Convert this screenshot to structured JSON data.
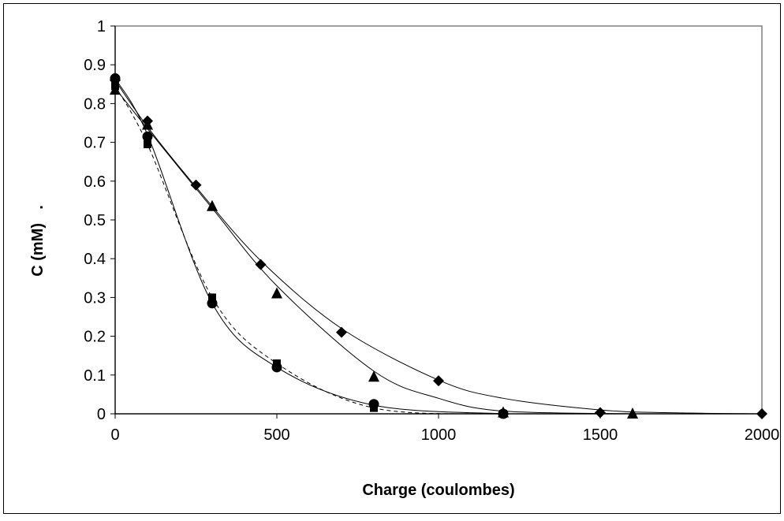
{
  "chart_data": {
    "type": "scatter",
    "title": "",
    "xlabel": "Charge (coulombes)",
    "ylabel": "C (mM)",
    "ylabel_trailing_mark": ".",
    "xlim": [
      0,
      2000
    ],
    "ylim": [
      0,
      1
    ],
    "xticks": [
      0,
      500,
      1000,
      1500,
      2000
    ],
    "xtick_labels": [
      "0",
      "500",
      "1000",
      "1500",
      "2000"
    ],
    "yticks": [
      0,
      0.1,
      0.2,
      0.3,
      0.4,
      0.5,
      0.6,
      0.7,
      0.8,
      0.9,
      1
    ],
    "ytick_labels": [
      "0",
      "0.1",
      "0.2",
      "0.3",
      "0.4",
      "0.5",
      "0.6",
      "0.7",
      "0.8",
      "0.9",
      "1"
    ],
    "grid": false,
    "legend": "none",
    "series": [
      {
        "marker": "diamond",
        "line": "solid",
        "x": [
          0,
          100,
          250,
          450,
          700,
          1000,
          1500,
          2000
        ],
        "values": [
          0.86,
          0.755,
          0.59,
          0.385,
          0.21,
          0.085,
          0.003,
          0.0
        ],
        "fit_x": [
          0,
          100,
          250,
          450,
          700,
          1000,
          1200,
          1500,
          1700,
          2000
        ],
        "fit_values": [
          0.86,
          0.74,
          0.585,
          0.395,
          0.22,
          0.087,
          0.04,
          0.01,
          0.003,
          0.0
        ]
      },
      {
        "marker": "triangle",
        "line": "solid",
        "x": [
          0,
          100,
          300,
          500,
          800,
          1200,
          1600
        ],
        "values": [
          0.835,
          0.745,
          0.535,
          0.31,
          0.095,
          0.003,
          0.0
        ],
        "fit_x": [
          0,
          100,
          300,
          500,
          800,
          1000,
          1200,
          1600
        ],
        "fit_values": [
          0.84,
          0.735,
          0.53,
          0.33,
          0.11,
          0.04,
          0.007,
          0.0
        ]
      },
      {
        "marker": "square",
        "line": "dashed",
        "x": [
          0,
          100,
          300,
          500,
          800,
          1200
        ],
        "values": [
          0.845,
          0.695,
          0.3,
          0.13,
          0.015,
          0.0
        ],
        "fit_x": [
          0,
          100,
          300,
          500,
          800,
          1200
        ],
        "fit_values": [
          0.845,
          0.695,
          0.3,
          0.13,
          0.015,
          0.0
        ]
      },
      {
        "marker": "circle",
        "line": "solid",
        "x": [
          0,
          100,
          300,
          500,
          800,
          1200
        ],
        "values": [
          0.865,
          0.715,
          0.285,
          0.12,
          0.025,
          0.0
        ],
        "fit_x": [
          0,
          100,
          300,
          500,
          800,
          1200
        ],
        "fit_values": [
          0.865,
          0.72,
          0.285,
          0.12,
          0.022,
          0.0
        ]
      }
    ]
  }
}
